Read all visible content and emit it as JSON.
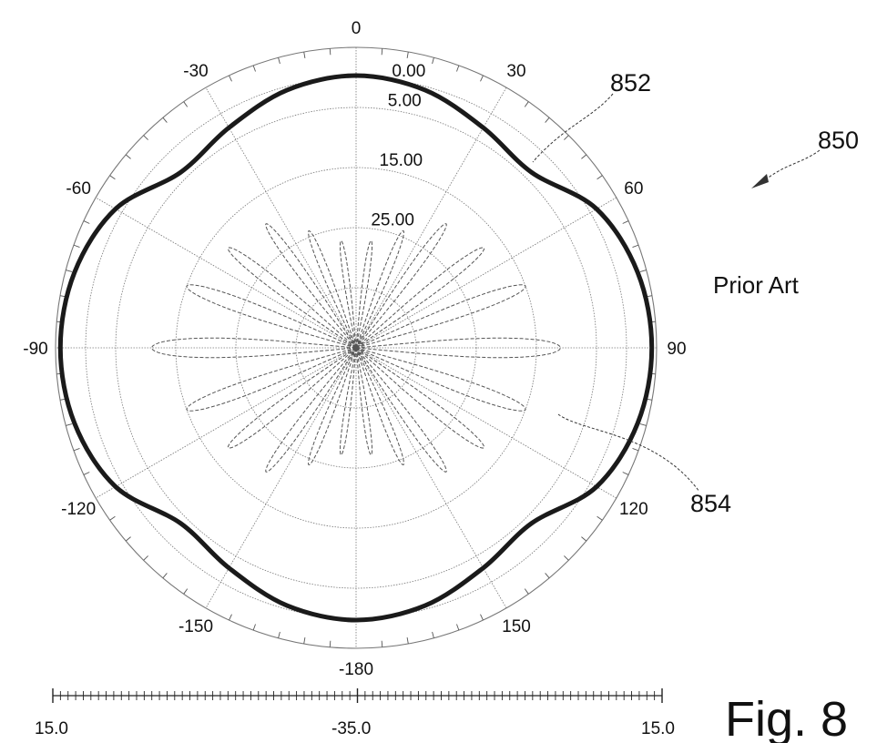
{
  "chart_data": {
    "type": "polar-line",
    "reference_label": "850",
    "caption": "Prior Art",
    "figure_label": "Fig. 8",
    "angle_ticks": [
      {
        "deg": 0,
        "label": "0"
      },
      {
        "deg": 30,
        "label": "30"
      },
      {
        "deg": 60,
        "label": "60"
      },
      {
        "deg": 90,
        "label": "90"
      },
      {
        "deg": 120,
        "label": "120"
      },
      {
        "deg": 150,
        "label": "150"
      },
      {
        "deg": 180,
        "label": "-180"
      },
      {
        "deg": -150,
        "label": "-150"
      },
      {
        "deg": -120,
        "label": "-120"
      },
      {
        "deg": -90,
        "label": "-90"
      },
      {
        "deg": -60,
        "label": "-60"
      },
      {
        "deg": -30,
        "label": "-30"
      }
    ],
    "radial_axis": {
      "min": -35.0,
      "max": 15.0,
      "ring_values": [
        15.0,
        10.0,
        5.0,
        -5.0,
        -15.0,
        -25.0
      ],
      "ring_labels": [
        {
          "value": 10.0,
          "label": "0.00"
        },
        {
          "value": 5.0,
          "label": "5.00"
        },
        {
          "value": -5.0,
          "label": "15.00"
        },
        {
          "value": -15.0,
          "label": "25.00"
        }
      ]
    },
    "scale_bar": {
      "left_label": "15.0",
      "center_label": "-35.0",
      "right_label": "15.0",
      "minor_divisions": 80
    },
    "series": [
      {
        "name": "852",
        "style": "solid-thick",
        "color": "#1a1a1a",
        "theta_deg": [
          0,
          15,
          30,
          45,
          60,
          75,
          90,
          105,
          120,
          135,
          150,
          165,
          180,
          195,
          210,
          225,
          240,
          255,
          270,
          285,
          300,
          315,
          330,
          345
        ],
        "r": [
          10.3,
          9.4,
          7.3,
          6.3,
          11.2,
          13.5,
          14.2,
          13.5,
          11.2,
          6.3,
          7.3,
          9.4,
          10.3,
          9.4,
          7.3,
          6.3,
          11.2,
          13.5,
          14.2,
          13.5,
          11.2,
          6.3,
          7.3,
          9.4
        ]
      },
      {
        "name": "854",
        "style": "dashed-thin",
        "color": "#555555",
        "lobes": [
          {
            "center_deg": 90,
            "peak": -1.0,
            "half_width_deg": 5.5
          },
          {
            "center_deg": -90,
            "peak": -1.0,
            "half_width_deg": 5.5
          },
          {
            "center_deg": 70,
            "peak": -5.0,
            "half_width_deg": 4.5
          },
          {
            "center_deg": -70,
            "peak": -5.0,
            "half_width_deg": 4.5
          },
          {
            "center_deg": 110,
            "peak": -5.0,
            "half_width_deg": 4.5
          },
          {
            "center_deg": -110,
            "peak": -5.0,
            "half_width_deg": 4.5
          },
          {
            "center_deg": 52,
            "peak": -8.0,
            "half_width_deg": 4.0
          },
          {
            "center_deg": -52,
            "peak": -8.0,
            "half_width_deg": 4.0
          },
          {
            "center_deg": 128,
            "peak": -8.0,
            "half_width_deg": 4.0
          },
          {
            "center_deg": -128,
            "peak": -8.0,
            "half_width_deg": 4.0
          },
          {
            "center_deg": 36,
            "peak": -9.5,
            "half_width_deg": 3.6
          },
          {
            "center_deg": -36,
            "peak": -9.5,
            "half_width_deg": 3.6
          },
          {
            "center_deg": 144,
            "peak": -9.5,
            "half_width_deg": 3.6
          },
          {
            "center_deg": -144,
            "peak": -9.5,
            "half_width_deg": 3.6
          },
          {
            "center_deg": 22,
            "peak": -14.0,
            "half_width_deg": 3.4
          },
          {
            "center_deg": -22,
            "peak": -14.0,
            "half_width_deg": 3.4
          },
          {
            "center_deg": 158,
            "peak": -14.0,
            "half_width_deg": 3.4
          },
          {
            "center_deg": -158,
            "peak": -14.0,
            "half_width_deg": 3.4
          },
          {
            "center_deg": 8,
            "peak": -17.0,
            "half_width_deg": 3.0
          },
          {
            "center_deg": -8,
            "peak": -17.0,
            "half_width_deg": 3.0
          },
          {
            "center_deg": 172,
            "peak": -17.0,
            "half_width_deg": 3.0
          },
          {
            "center_deg": -172,
            "peak": -17.0,
            "half_width_deg": 3.0
          }
        ]
      }
    ]
  }
}
